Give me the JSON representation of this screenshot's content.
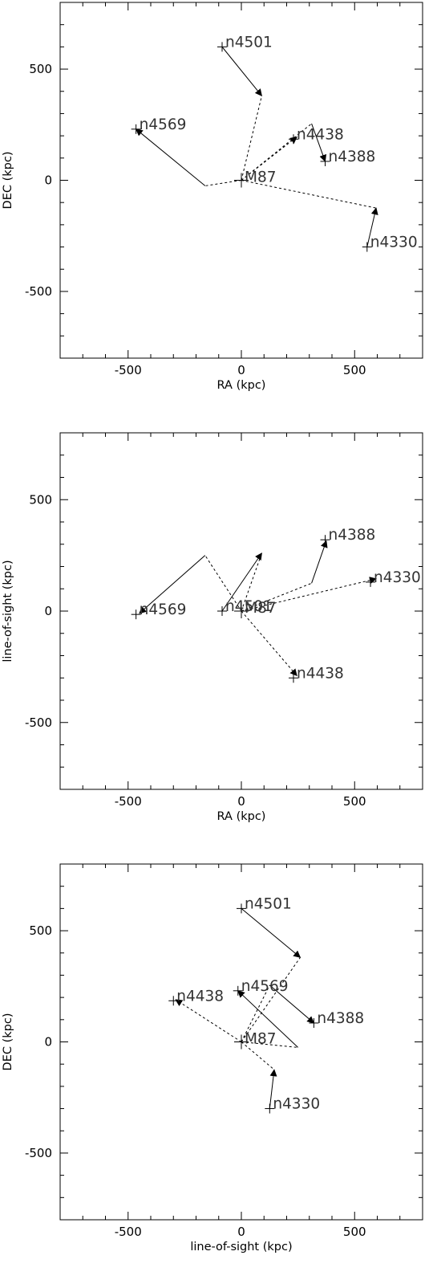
{
  "colors": {
    "background": "#ffffff",
    "ink": "#000000"
  },
  "chart_data": [
    {
      "type": "scatter",
      "title": "",
      "xlabel": "RA (kpc)",
      "ylabel": "DEC (kpc)",
      "xlim": [
        -800,
        800
      ],
      "ylim": [
        -800,
        800
      ],
      "xticks": [
        -500,
        0,
        500
      ],
      "yticks": [
        -500,
        0,
        500
      ],
      "grid": false,
      "series": [
        {
          "name": "",
          "points": [
            {
              "label": "M87",
              "x": 0,
              "y": 0,
              "big": true
            },
            {
              "label": "n4501",
              "x": -85,
              "y": 600
            },
            {
              "label": "n4569",
              "x": -465,
              "y": 230
            },
            {
              "label": "n4438",
              "x": 230,
              "y": 185
            },
            {
              "label": "n4388",
              "x": 370,
              "y": 85
            },
            {
              "label": "n4330",
              "x": 555,
              "y": -300
            }
          ]
        }
      ],
      "arrows": [
        {
          "from": [
            0,
            0
          ],
          "to": [
            90,
            380
          ],
          "style": "dashed",
          "head": false
        },
        {
          "from": [
            -85,
            600
          ],
          "to": [
            90,
            380
          ],
          "style": "solid",
          "head": true
        },
        {
          "from": [
            0,
            0
          ],
          "to": [
            -160,
            -25
          ],
          "style": "dashed",
          "head": false
        },
        {
          "from": [
            -160,
            -25
          ],
          "to": [
            -465,
            230
          ],
          "style": "solid",
          "head": true
        },
        {
          "from": [
            0,
            0
          ],
          "to": [
            310,
            255
          ],
          "style": "dashed",
          "head": false
        },
        {
          "from": [
            310,
            255
          ],
          "to": [
            370,
            85
          ],
          "style": "solid",
          "head": true
        },
        {
          "from": [
            0,
            0
          ],
          "to": [
            245,
            195
          ],
          "style": "dashed",
          "head": true
        },
        {
          "from": [
            0,
            0
          ],
          "to": [
            595,
            -125
          ],
          "style": "dashed",
          "head": false
        },
        {
          "from": [
            555,
            -300
          ],
          "to": [
            595,
            -125
          ],
          "style": "solid",
          "head": true
        }
      ]
    },
    {
      "type": "scatter",
      "title": "",
      "xlabel": "RA (kpc)",
      "ylabel": "line-of-sight (kpc)",
      "xlim": [
        -800,
        800
      ],
      "ylim": [
        -800,
        800
      ],
      "xticks": [
        -500,
        0,
        500
      ],
      "yticks": [
        -500,
        0,
        500
      ],
      "grid": false,
      "series": [
        {
          "name": "",
          "points": [
            {
              "label": "M87",
              "x": 0,
              "y": 0,
              "big": true
            },
            {
              "label": "n4501",
              "x": -85,
              "y": 0
            },
            {
              "label": "n4569",
              "x": -465,
              "y": -15
            },
            {
              "label": "n4438",
              "x": 230,
              "y": -300
            },
            {
              "label": "n4388",
              "x": 370,
              "y": 320
            },
            {
              "label": "n4330",
              "x": 570,
              "y": 130
            }
          ]
        }
      ],
      "arrows": [
        {
          "from": [
            0,
            0
          ],
          "to": [
            -160,
            250
          ],
          "style": "dashed",
          "head": false
        },
        {
          "from": [
            -160,
            250
          ],
          "to": [
            -450,
            -10
          ],
          "style": "solid",
          "head": true
        },
        {
          "from": [
            0,
            0
          ],
          "to": [
            90,
            260
          ],
          "style": "dashed",
          "head": false
        },
        {
          "from": [
            -85,
            0
          ],
          "to": [
            90,
            260
          ],
          "style": "solid",
          "head": true
        },
        {
          "from": [
            0,
            0
          ],
          "to": [
            310,
            125
          ],
          "style": "dashed",
          "head": false
        },
        {
          "from": [
            310,
            125
          ],
          "to": [
            375,
            315
          ],
          "style": "solid",
          "head": true
        },
        {
          "from": [
            0,
            0
          ],
          "to": [
            595,
            145
          ],
          "style": "dashed",
          "head": true
        },
        {
          "from": [
            0,
            0
          ],
          "to": [
            245,
            -290
          ],
          "style": "dashed",
          "head": true
        }
      ]
    },
    {
      "type": "scatter",
      "title": "",
      "xlabel": "line-of-sight (kpc)",
      "ylabel": "DEC (kpc)",
      "xlim": [
        -800,
        800
      ],
      "ylim": [
        -800,
        800
      ],
      "xticks": [
        -500,
        0,
        500
      ],
      "yticks": [
        -500,
        0,
        500
      ],
      "grid": false,
      "series": [
        {
          "name": "",
          "points": [
            {
              "label": "M87",
              "x": 0,
              "y": 0,
              "big": true
            },
            {
              "label": "n4501",
              "x": 0,
              "y": 600
            },
            {
              "label": "n4569",
              "x": -15,
              "y": 230
            },
            {
              "label": "n4438",
              "x": -300,
              "y": 185
            },
            {
              "label": "n4388",
              "x": 320,
              "y": 85
            },
            {
              "label": "n4330",
              "x": 125,
              "y": -300
            }
          ]
        }
      ],
      "arrows": [
        {
          "from": [
            0,
            600
          ],
          "to": [
            260,
            380
          ],
          "style": "solid",
          "head": true
        },
        {
          "from": [
            0,
            0
          ],
          "to": [
            260,
            380
          ],
          "style": "dashed",
          "head": false
        },
        {
          "from": [
            0,
            0
          ],
          "to": [
            250,
            -25
          ],
          "style": "dashed",
          "head": false
        },
        {
          "from": [
            250,
            -25
          ],
          "to": [
            -15,
            230
          ],
          "style": "solid",
          "head": true
        },
        {
          "from": [
            0,
            0
          ],
          "to": [
            125,
            255
          ],
          "style": "dashed",
          "head": false
        },
        {
          "from": [
            125,
            255
          ],
          "to": [
            320,
            85
          ],
          "style": "solid",
          "head": true
        },
        {
          "from": [
            0,
            0
          ],
          "to": [
            -290,
            190
          ],
          "style": "dashed",
          "head": true
        },
        {
          "from": [
            0,
            0
          ],
          "to": [
            145,
            -125
          ],
          "style": "dashed",
          "head": false
        },
        {
          "from": [
            125,
            -300
          ],
          "to": [
            145,
            -125
          ],
          "style": "solid",
          "head": true
        }
      ]
    }
  ]
}
